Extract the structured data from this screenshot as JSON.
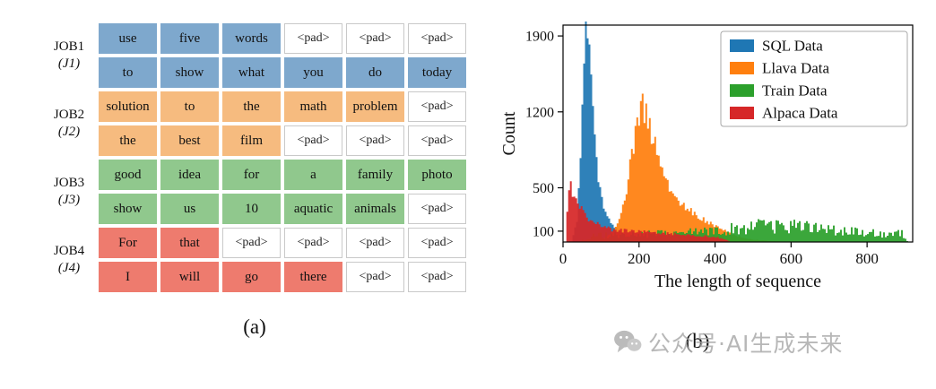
{
  "panel_a": {
    "caption": "(a)",
    "pad_token": "<pad>",
    "jobs": [
      {
        "name": "JOB1",
        "tag": "(J1)",
        "color": "#7ea8cd",
        "rows": [
          [
            "use",
            "five",
            "words",
            "<pad>",
            "<pad>",
            "<pad>"
          ],
          [
            "to",
            "show",
            "what",
            "you",
            "do",
            "today"
          ]
        ]
      },
      {
        "name": "JOB2",
        "tag": "(J2)",
        "color": "#f6bb7f",
        "rows": [
          [
            "solution",
            "to",
            "the",
            "math",
            "problem",
            "<pad>"
          ],
          [
            "the",
            "best",
            "film",
            "<pad>",
            "<pad>",
            "<pad>"
          ]
        ]
      },
      {
        "name": "JOB3",
        "tag": "(J3)",
        "color": "#90c88d",
        "rows": [
          [
            "good",
            "idea",
            "for",
            "a",
            "family",
            "photo"
          ],
          [
            "show",
            "us",
            "10",
            "aquatic",
            "animals",
            "<pad>"
          ]
        ]
      },
      {
        "name": "JOB4",
        "tag": "(J4)",
        "color": "#ee7b6e",
        "rows": [
          [
            "For",
            "that",
            "<pad>",
            "<pad>",
            "<pad>",
            "<pad>"
          ],
          [
            "I",
            "will",
            "go",
            "there",
            "<pad>",
            "<pad>"
          ]
        ]
      }
    ]
  },
  "panel_b": {
    "caption": "(b)",
    "chart_data": {
      "type": "histogram",
      "title": "",
      "xlabel": "The length of sequence",
      "ylabel": "Count",
      "xlim": [
        0,
        920
      ],
      "ylim": [
        0,
        2000
      ],
      "xticks": [
        0,
        200,
        400,
        600,
        800
      ],
      "yticks": [
        100,
        500,
        1200,
        1900
      ],
      "grid": false,
      "legend_position": "upper right",
      "series": [
        {
          "name": "SQL Data",
          "color": "#1f77b4",
          "peak_x": 60,
          "peak_count": 1900,
          "range": [
            20,
            320
          ],
          "envelope": [
            [
              20,
              0
            ],
            [
              35,
              200
            ],
            [
              45,
              900
            ],
            [
              52,
              1600
            ],
            [
              58,
              1900
            ],
            [
              68,
              1750
            ],
            [
              78,
              1150
            ],
            [
              90,
              600
            ],
            [
              105,
              330
            ],
            [
              125,
              170
            ],
            [
              150,
              80
            ],
            [
              200,
              25
            ],
            [
              260,
              8
            ],
            [
              320,
              0
            ]
          ]
        },
        {
          "name": "Llava Data",
          "color": "#ff7f0e",
          "peak_x": 205,
          "peak_count": 1250,
          "range": [
            75,
            600
          ],
          "envelope": [
            [
              75,
              0
            ],
            [
              105,
              25
            ],
            [
              135,
              120
            ],
            [
              160,
              380
            ],
            [
              180,
              820
            ],
            [
              195,
              1150
            ],
            [
              205,
              1250
            ],
            [
              215,
              1190
            ],
            [
              230,
              1000
            ],
            [
              250,
              760
            ],
            [
              275,
              540
            ],
            [
              300,
              400
            ],
            [
              330,
              300
            ],
            [
              360,
              220
            ],
            [
              390,
              160
            ],
            [
              420,
              110
            ],
            [
              450,
              60
            ],
            [
              490,
              25
            ],
            [
              540,
              10
            ],
            [
              600,
              0
            ]
          ]
        },
        {
          "name": "Train Data",
          "color": "#2ca02c",
          "peak_x": 570,
          "peak_count": 160,
          "range": [
            40,
            905
          ],
          "envelope": [
            [
              40,
              0
            ],
            [
              60,
              40
            ],
            [
              90,
              60
            ],
            [
              150,
              70
            ],
            [
              250,
              78
            ],
            [
              350,
              88
            ],
            [
              420,
              112
            ],
            [
              470,
              132
            ],
            [
              520,
              145
            ],
            [
              570,
              160
            ],
            [
              620,
              145
            ],
            [
              670,
              128
            ],
            [
              720,
              112
            ],
            [
              770,
              95
            ],
            [
              820,
              80
            ],
            [
              860,
              62
            ],
            [
              890,
              90
            ],
            [
              905,
              0
            ]
          ]
        },
        {
          "name": "Alpaca Data",
          "color": "#d62728",
          "peak_x": 18,
          "peak_count": 500,
          "range": [
            4,
            440
          ],
          "envelope": [
            [
              4,
              0
            ],
            [
              8,
              260
            ],
            [
              13,
              470
            ],
            [
              18,
              500
            ],
            [
              26,
              450
            ],
            [
              36,
              360
            ],
            [
              50,
              270
            ],
            [
              70,
              200
            ],
            [
              95,
              150
            ],
            [
              130,
              115
            ],
            [
              170,
              100
            ],
            [
              220,
              90
            ],
            [
              270,
              80
            ],
            [
              320,
              68
            ],
            [
              370,
              55
            ],
            [
              400,
              45
            ],
            [
              420,
              30
            ],
            [
              440,
              0
            ]
          ]
        }
      ]
    }
  },
  "watermark": {
    "icon": "wechat-icon",
    "text": "公众号·AI生成未来"
  }
}
